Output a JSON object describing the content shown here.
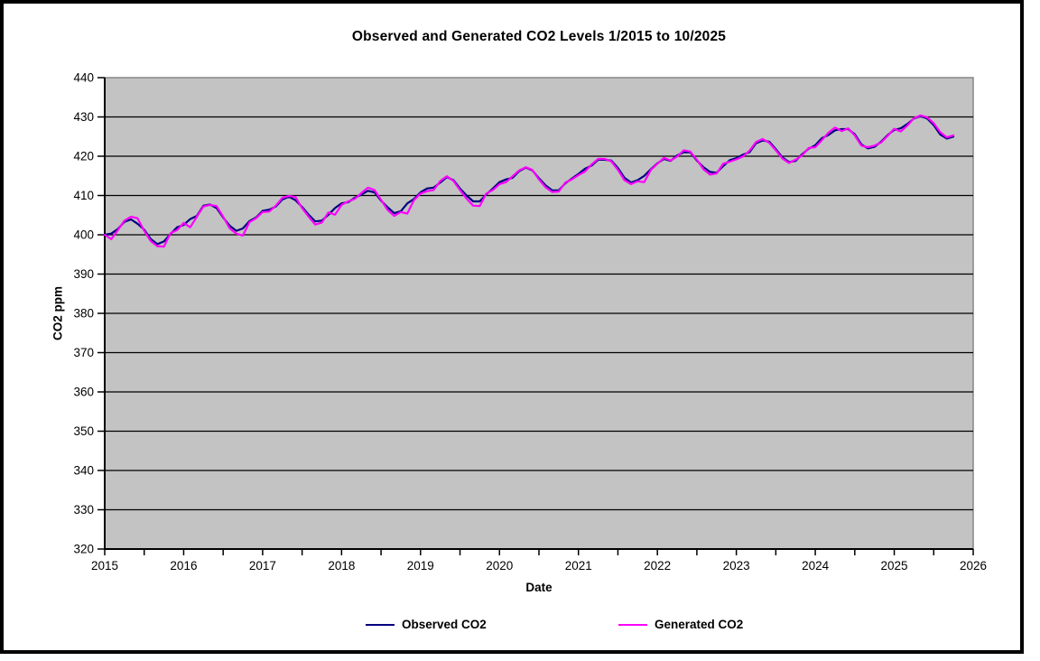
{
  "chart": {
    "title": "Observed and Generated CO2 Levels 1/2015 to 10/2025",
    "plot_background": "#c3c3c3",
    "plot_border_color": "#868686",
    "gridline_color": "#000000",
    "axis_color": "#000000",
    "x_axis": {
      "label": "Date",
      "ticks": [
        2015,
        2016,
        2017,
        2018,
        2019,
        2020,
        2021,
        2022,
        2023,
        2024,
        2025,
        2026
      ],
      "minor_tick_interval": 0.5
    },
    "y_axis": {
      "label": "CO2 ppm",
      "ticks": [
        320,
        330,
        340,
        350,
        360,
        370,
        380,
        390,
        400,
        410,
        420,
        430,
        440
      ]
    }
  },
  "chart_data": {
    "type": "line",
    "title": "Observed and Generated CO2 Levels 1/2015 to 10/2025",
    "xlabel": "Date",
    "ylabel": "CO2 ppm",
    "xlim": [
      2015,
      2026
    ],
    "ylim": [
      320,
      440
    ],
    "grid": "horizontal",
    "legend_position": "bottom",
    "x_start": "2015-01",
    "x_end": "2025-10",
    "x_step_months": 1,
    "series": [
      {
        "name": "Observed CO2",
        "color": "#000080",
        "values": [
          400.0,
          400.3,
          401.5,
          403.3,
          403.9,
          402.8,
          401.3,
          398.9,
          397.6,
          398.3,
          400.2,
          401.9,
          402.5,
          404.0,
          404.8,
          407.4,
          407.7,
          406.8,
          404.4,
          402.3,
          401.0,
          401.6,
          403.5,
          404.4,
          406.1,
          406.4,
          407.2,
          409.0,
          409.7,
          408.8,
          407.1,
          405.1,
          403.4,
          403.6,
          405.1,
          406.8,
          408.0,
          408.3,
          409.4,
          410.2,
          411.2,
          410.8,
          408.7,
          407.0,
          405.5,
          406.0,
          408.0,
          409.1,
          410.8,
          411.8,
          412.0,
          413.3,
          414.7,
          413.9,
          411.8,
          410.0,
          408.5,
          408.5,
          410.3,
          411.8,
          413.4,
          414.1,
          414.5,
          416.2,
          417.1,
          416.4,
          414.4,
          412.6,
          411.3,
          411.3,
          413.1,
          414.3,
          415.5,
          416.8,
          417.6,
          419.1,
          419.1,
          418.9,
          417.0,
          414.5,
          413.3,
          413.9,
          415.0,
          416.7,
          418.2,
          419.3,
          418.8,
          420.2,
          421.0,
          421.0,
          418.9,
          417.2,
          416.0,
          415.8,
          417.5,
          419.0,
          419.5,
          420.4,
          421.0,
          423.3,
          424.0,
          423.7,
          421.8,
          419.7,
          418.5,
          418.8,
          420.5,
          421.9,
          422.8,
          424.6,
          425.4,
          426.6,
          426.9,
          426.9,
          425.6,
          423.0,
          422.0,
          422.4,
          423.7,
          425.4,
          426.7,
          427.1,
          428.2,
          429.6,
          430.2,
          429.6,
          427.9,
          425.5,
          424.5,
          425.0
        ]
      },
      {
        "name": "Generated CO2",
        "color": "#ff00ff",
        "values": [
          400.0,
          398.9,
          401.2,
          403.6,
          404.6,
          404.2,
          401.0,
          398.4,
          397.1,
          397.0,
          400.4,
          401.2,
          403.0,
          401.9,
          404.6,
          407.2,
          407.6,
          407.3,
          404.6,
          401.6,
          400.3,
          399.8,
          403.2,
          404.2,
          405.8,
          405.9,
          407.4,
          409.4,
          409.9,
          409.6,
          406.8,
          404.6,
          402.6,
          403.1,
          405.7,
          405.1,
          407.6,
          408.5,
          409.1,
          410.6,
          412.0,
          411.4,
          408.9,
          406.3,
          404.8,
          405.8,
          405.4,
          408.8,
          410.5,
          411.1,
          411.4,
          413.7,
          414.9,
          413.7,
          411.4,
          409.2,
          407.4,
          407.3,
          410.5,
          411.4,
          412.9,
          413.4,
          414.9,
          416.4,
          417.2,
          416.5,
          414.1,
          412.1,
          410.9,
          411.0,
          413.3,
          414.1,
          415.2,
          416.1,
          417.9,
          419.3,
          419.3,
          418.7,
          416.5,
          413.9,
          412.9,
          413.6,
          413.4,
          416.5,
          418.1,
          419.6,
          418.9,
          419.9,
          421.5,
          421.2,
          419.1,
          416.7,
          415.3,
          415.6,
          418.1,
          418.6,
          419.2,
          419.9,
          421.4,
          423.6,
          424.4,
          423.4,
          421.5,
          419.4,
          418.3,
          419.1,
          420.2,
          422.1,
          422.3,
          424.1,
          426.0,
          427.3,
          426.4,
          427.1,
          425.3,
          422.7,
          422.3,
          422.7,
          423.5,
          425.2,
          427.0,
          426.3,
          427.8,
          429.7,
          430.4,
          429.9,
          428.4,
          426.1,
          424.8,
          425.3
        ]
      }
    ]
  }
}
